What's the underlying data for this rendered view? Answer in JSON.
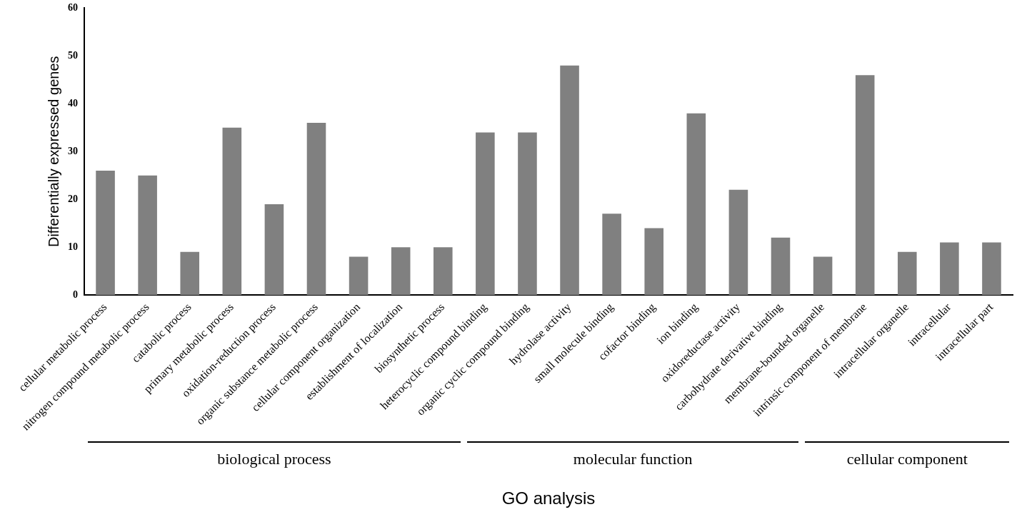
{
  "chart_data": {
    "type": "bar",
    "xlabel": "GO analysis",
    "ylabel": "Differentially expressed genes",
    "categories": [
      "cellular metabolic process",
      "nitrogen compound metabolic process",
      "catabolic process",
      "primary metabolic process",
      "oxidation-reduction process",
      "organic substance metabolic process",
      "cellular component organization",
      "establishment of localization",
      "biosynthetic process",
      "heterocyclic compound binding",
      "organic cyclic compound binding",
      "hydrolase activity",
      "small molecule binding",
      "cofactor binding",
      "ion binding",
      "oxidoreductase activity",
      "carbohydrate derivative binding",
      "membrane-bounded organelle",
      "intrinsic component of membrane",
      "intracellular organelle",
      "intracellular",
      "intracellular part"
    ],
    "values": [
      26,
      25,
      9,
      35,
      19,
      36,
      8,
      10,
      10,
      34,
      34,
      48,
      17,
      14,
      38,
      22,
      12,
      8,
      46,
      9,
      11,
      11
    ],
    "color": "#808080",
    "ylim": [
      0,
      60
    ],
    "yticks": [
      0,
      10,
      20,
      30,
      40,
      50,
      60
    ],
    "grid": false,
    "legend": false,
    "annotations": [
      "biological process",
      "molecular function",
      "cellular component"
    ]
  }
}
